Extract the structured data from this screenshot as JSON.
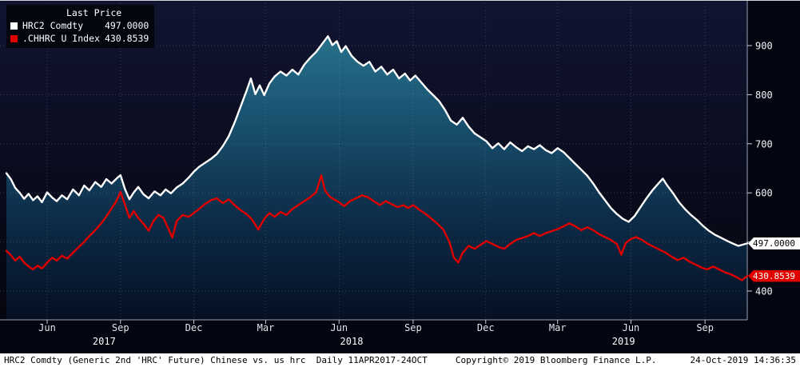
{
  "legend": {
    "title": "Last Price",
    "items": [
      {
        "label": "HRC2 Comdty",
        "value": "497.0000",
        "swatch": "#ffffff"
      },
      {
        "label": ".CHHRC U Index",
        "value": "430.8539",
        "swatch": "#e00000"
      }
    ]
  },
  "price_markers": [
    {
      "text": "497.0000",
      "value": 497.0,
      "bg": "#ffffff",
      "fg": "#000000"
    },
    {
      "text": "430.8539",
      "value": 430.8539,
      "bg": "#e00000",
      "fg": "#ffffff"
    }
  ],
  "footer": {
    "left": "HRC2 Comdty (Generic 2nd 'HRC' Future) Chinese vs. us hrc  Daily 11APR2017-24OCT",
    "copyright": "Copyright© 2019 Bloomberg Finance L.P.",
    "datetime": "24-Oct-2019 14:36:35"
  },
  "chart_data": {
    "type": "line",
    "title": "Last Price",
    "xlabel": "",
    "ylabel": "",
    "x_range": [
      "11APR2017",
      "24OCT2019"
    ],
    "x_encoding": "t is the fraction of the time span from 11-Apr-2017 (0) to 24-Oct-2019 (1)",
    "ylim": [
      341,
      993
    ],
    "y_ticks": [
      400,
      500,
      600,
      700,
      800,
      900
    ],
    "grid": "dotted",
    "legend_position": "top-left",
    "x_month_ticks": [
      {
        "label": "Jun",
        "t": 0.055
      },
      {
        "label": "Sep",
        "t": 0.154
      },
      {
        "label": "Dec",
        "t": 0.253
      },
      {
        "label": "Mar",
        "t": 0.35
      },
      {
        "label": "Jun",
        "t": 0.449
      },
      {
        "label": "Sep",
        "t": 0.549
      },
      {
        "label": "Dec",
        "t": 0.647
      },
      {
        "label": "Mar",
        "t": 0.744
      },
      {
        "label": "Jun",
        "t": 0.843
      },
      {
        "label": "Sep",
        "t": 0.943
      }
    ],
    "x_year_labels": [
      {
        "label": "2017",
        "t": 0.132
      },
      {
        "label": "2018",
        "t": 0.466
      },
      {
        "label": "2019",
        "t": 0.833
      }
    ],
    "series": [
      {
        "name": "HRC2 Comdty",
        "color": "#ffffff",
        "style": "line-with-gradient-area",
        "last_price": 497.0,
        "points": [
          [
            0.0,
            640
          ],
          [
            0.006,
            628
          ],
          [
            0.012,
            610
          ],
          [
            0.018,
            600
          ],
          [
            0.024,
            588
          ],
          [
            0.03,
            598
          ],
          [
            0.036,
            585
          ],
          [
            0.042,
            593
          ],
          [
            0.048,
            581
          ],
          [
            0.055,
            601
          ],
          [
            0.062,
            590
          ],
          [
            0.068,
            583
          ],
          [
            0.075,
            595
          ],
          [
            0.082,
            587
          ],
          [
            0.09,
            607
          ],
          [
            0.098,
            595
          ],
          [
            0.105,
            615
          ],
          [
            0.112,
            605
          ],
          [
            0.12,
            622
          ],
          [
            0.128,
            612
          ],
          [
            0.135,
            628
          ],
          [
            0.142,
            619
          ],
          [
            0.15,
            631
          ],
          [
            0.154,
            636
          ],
          [
            0.16,
            608
          ],
          [
            0.166,
            587
          ],
          [
            0.172,
            601
          ],
          [
            0.178,
            612
          ],
          [
            0.185,
            597
          ],
          [
            0.192,
            589
          ],
          [
            0.2,
            603
          ],
          [
            0.208,
            595
          ],
          [
            0.215,
            607
          ],
          [
            0.222,
            599
          ],
          [
            0.23,
            611
          ],
          [
            0.238,
            619
          ],
          [
            0.246,
            631
          ],
          [
            0.253,
            643
          ],
          [
            0.26,
            653
          ],
          [
            0.268,
            661
          ],
          [
            0.276,
            669
          ],
          [
            0.284,
            679
          ],
          [
            0.292,
            695
          ],
          [
            0.3,
            715
          ],
          [
            0.308,
            743
          ],
          [
            0.316,
            775
          ],
          [
            0.324,
            807
          ],
          [
            0.33,
            833
          ],
          [
            0.336,
            801
          ],
          [
            0.342,
            819
          ],
          [
            0.348,
            799
          ],
          [
            0.355,
            823
          ],
          [
            0.362,
            837
          ],
          [
            0.37,
            847
          ],
          [
            0.378,
            839
          ],
          [
            0.386,
            851
          ],
          [
            0.394,
            841
          ],
          [
            0.402,
            861
          ],
          [
            0.41,
            875
          ],
          [
            0.418,
            887
          ],
          [
            0.426,
            903
          ],
          [
            0.434,
            919
          ],
          [
            0.44,
            901
          ],
          [
            0.446,
            909
          ],
          [
            0.452,
            887
          ],
          [
            0.458,
            899
          ],
          [
            0.466,
            879
          ],
          [
            0.474,
            867
          ],
          [
            0.482,
            859
          ],
          [
            0.49,
            867
          ],
          [
            0.498,
            847
          ],
          [
            0.506,
            857
          ],
          [
            0.514,
            841
          ],
          [
            0.522,
            851
          ],
          [
            0.53,
            833
          ],
          [
            0.538,
            843
          ],
          [
            0.545,
            829
          ],
          [
            0.552,
            839
          ],
          [
            0.56,
            825
          ],
          [
            0.568,
            811
          ],
          [
            0.576,
            799
          ],
          [
            0.584,
            787
          ],
          [
            0.592,
            769
          ],
          [
            0.6,
            747
          ],
          [
            0.608,
            739
          ],
          [
            0.616,
            753
          ],
          [
            0.624,
            735
          ],
          [
            0.632,
            721
          ],
          [
            0.64,
            713
          ],
          [
            0.648,
            705
          ],
          [
            0.656,
            691
          ],
          [
            0.664,
            701
          ],
          [
            0.672,
            689
          ],
          [
            0.68,
            703
          ],
          [
            0.688,
            693
          ],
          [
            0.696,
            685
          ],
          [
            0.704,
            695
          ],
          [
            0.712,
            689
          ],
          [
            0.72,
            697
          ],
          [
            0.728,
            687
          ],
          [
            0.736,
            681
          ],
          [
            0.744,
            691
          ],
          [
            0.752,
            683
          ],
          [
            0.76,
            671
          ],
          [
            0.768,
            659
          ],
          [
            0.776,
            647
          ],
          [
            0.784,
            635
          ],
          [
            0.792,
            619
          ],
          [
            0.8,
            601
          ],
          [
            0.808,
            585
          ],
          [
            0.816,
            569
          ],
          [
            0.824,
            557
          ],
          [
            0.832,
            547
          ],
          [
            0.84,
            541
          ],
          [
            0.848,
            553
          ],
          [
            0.856,
            571
          ],
          [
            0.864,
            589
          ],
          [
            0.872,
            605
          ],
          [
            0.88,
            619
          ],
          [
            0.886,
            629
          ],
          [
            0.892,
            615
          ],
          [
            0.9,
            599
          ],
          [
            0.908,
            581
          ],
          [
            0.916,
            567
          ],
          [
            0.924,
            555
          ],
          [
            0.932,
            545
          ],
          [
            0.94,
            533
          ],
          [
            0.948,
            523
          ],
          [
            0.956,
            515
          ],
          [
            0.964,
            509
          ],
          [
            0.972,
            503
          ],
          [
            0.98,
            497
          ],
          [
            0.988,
            492
          ],
          [
            1.0,
            497
          ]
        ]
      },
      {
        "name": ".CHHRC U Index",
        "color": "#e00000",
        "style": "line",
        "last_price": 430.8539,
        "points": [
          [
            0.0,
            482
          ],
          [
            0.006,
            473
          ],
          [
            0.012,
            462
          ],
          [
            0.018,
            470
          ],
          [
            0.024,
            458
          ],
          [
            0.03,
            450
          ],
          [
            0.036,
            444
          ],
          [
            0.042,
            452
          ],
          [
            0.048,
            446
          ],
          [
            0.055,
            458
          ],
          [
            0.062,
            468
          ],
          [
            0.068,
            462
          ],
          [
            0.075,
            472
          ],
          [
            0.082,
            466
          ],
          [
            0.09,
            478
          ],
          [
            0.098,
            490
          ],
          [
            0.105,
            500
          ],
          [
            0.112,
            512
          ],
          [
            0.12,
            524
          ],
          [
            0.128,
            538
          ],
          [
            0.135,
            552
          ],
          [
            0.142,
            568
          ],
          [
            0.148,
            582
          ],
          [
            0.154,
            602
          ],
          [
            0.16,
            576
          ],
          [
            0.166,
            549
          ],
          [
            0.172,
            563
          ],
          [
            0.178,
            549
          ],
          [
            0.185,
            537
          ],
          [
            0.192,
            523
          ],
          [
            0.198,
            541
          ],
          [
            0.205,
            555
          ],
          [
            0.212,
            549
          ],
          [
            0.218,
            529
          ],
          [
            0.224,
            509
          ],
          [
            0.23,
            543
          ],
          [
            0.238,
            555
          ],
          [
            0.246,
            551
          ],
          [
            0.253,
            559
          ],
          [
            0.26,
            567
          ],
          [
            0.268,
            577
          ],
          [
            0.276,
            585
          ],
          [
            0.284,
            589
          ],
          [
            0.292,
            579
          ],
          [
            0.3,
            587
          ],
          [
            0.308,
            575
          ],
          [
            0.316,
            565
          ],
          [
            0.324,
            557
          ],
          [
            0.332,
            545
          ],
          [
            0.34,
            525
          ],
          [
            0.348,
            547
          ],
          [
            0.355,
            559
          ],
          [
            0.362,
            551
          ],
          [
            0.37,
            561
          ],
          [
            0.378,
            555
          ],
          [
            0.386,
            567
          ],
          [
            0.394,
            575
          ],
          [
            0.402,
            583
          ],
          [
            0.41,
            591
          ],
          [
            0.418,
            601
          ],
          [
            0.425,
            636
          ],
          [
            0.43,
            605
          ],
          [
            0.436,
            593
          ],
          [
            0.442,
            587
          ],
          [
            0.449,
            581
          ],
          [
            0.456,
            573
          ],
          [
            0.464,
            583
          ],
          [
            0.472,
            589
          ],
          [
            0.48,
            595
          ],
          [
            0.488,
            591
          ],
          [
            0.496,
            583
          ],
          [
            0.504,
            575
          ],
          [
            0.512,
            583
          ],
          [
            0.52,
            577
          ],
          [
            0.528,
            571
          ],
          [
            0.536,
            575
          ],
          [
            0.542,
            569
          ],
          [
            0.549,
            575
          ],
          [
            0.558,
            565
          ],
          [
            0.566,
            557
          ],
          [
            0.574,
            547
          ],
          [
            0.582,
            537
          ],
          [
            0.59,
            525
          ],
          [
            0.598,
            500
          ],
          [
            0.604,
            468
          ],
          [
            0.61,
            458
          ],
          [
            0.616,
            478
          ],
          [
            0.624,
            492
          ],
          [
            0.632,
            486
          ],
          [
            0.64,
            494
          ],
          [
            0.648,
            502
          ],
          [
            0.656,
            496
          ],
          [
            0.664,
            490
          ],
          [
            0.672,
            486
          ],
          [
            0.68,
            496
          ],
          [
            0.688,
            504
          ],
          [
            0.696,
            508
          ],
          [
            0.704,
            512
          ],
          [
            0.712,
            518
          ],
          [
            0.72,
            512
          ],
          [
            0.728,
            518
          ],
          [
            0.736,
            522
          ],
          [
            0.744,
            526
          ],
          [
            0.752,
            532
          ],
          [
            0.76,
            538
          ],
          [
            0.768,
            532
          ],
          [
            0.776,
            524
          ],
          [
            0.784,
            530
          ],
          [
            0.792,
            524
          ],
          [
            0.8,
            516
          ],
          [
            0.808,
            510
          ],
          [
            0.816,
            504
          ],
          [
            0.824,
            496
          ],
          [
            0.83,
            474
          ],
          [
            0.836,
            498
          ],
          [
            0.843,
            506
          ],
          [
            0.85,
            510
          ],
          [
            0.858,
            504
          ],
          [
            0.866,
            496
          ],
          [
            0.874,
            490
          ],
          [
            0.882,
            484
          ],
          [
            0.89,
            478
          ],
          [
            0.898,
            470
          ],
          [
            0.906,
            463
          ],
          [
            0.914,
            468
          ],
          [
            0.922,
            460
          ],
          [
            0.93,
            454
          ],
          [
            0.938,
            448
          ],
          [
            0.946,
            444
          ],
          [
            0.954,
            450
          ],
          [
            0.962,
            444
          ],
          [
            0.97,
            438
          ],
          [
            0.978,
            434
          ],
          [
            0.986,
            428
          ],
          [
            0.993,
            422
          ],
          [
            1.0,
            431
          ]
        ]
      }
    ]
  }
}
